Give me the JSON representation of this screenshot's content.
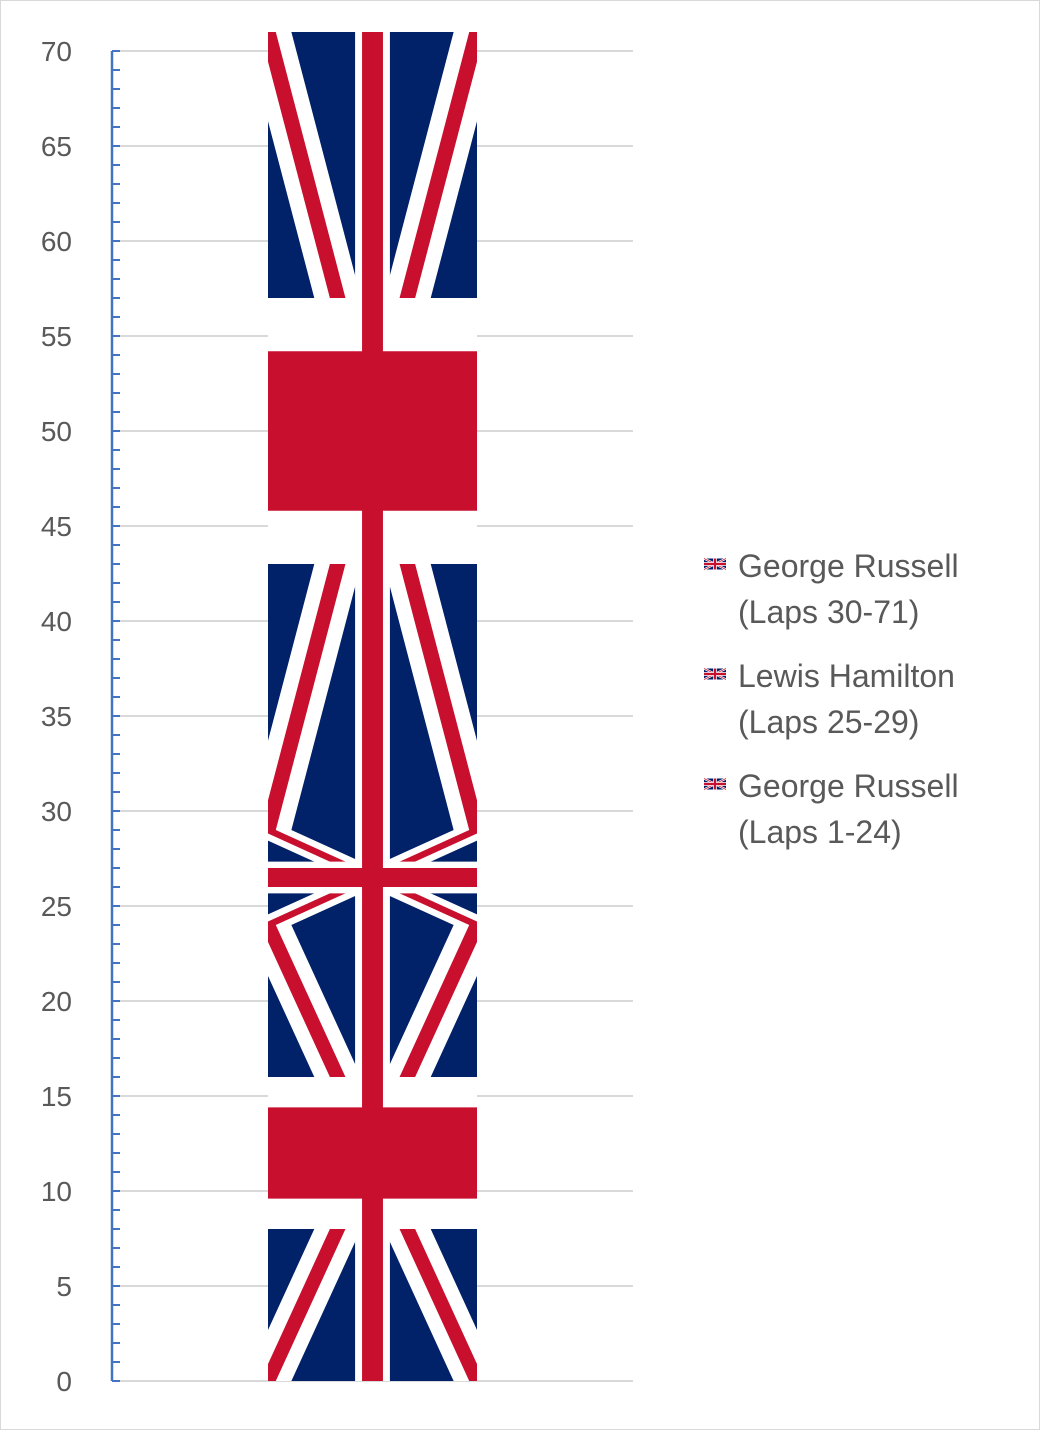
{
  "chart_data": {
    "type": "bar",
    "stacked": true,
    "categories": [
      ""
    ],
    "title": "",
    "xlabel": "",
    "ylabel": "",
    "ylim": [
      0,
      70
    ],
    "yticks": [
      0,
      5,
      10,
      15,
      20,
      25,
      30,
      35,
      40,
      45,
      50,
      55,
      60,
      65,
      70
    ],
    "ytick_labels": [
      "0",
      "5",
      "10",
      "15",
      "20",
      "25",
      "30",
      "35",
      "40",
      "45",
      "50",
      "55",
      "60",
      "65",
      "70"
    ],
    "grid": true,
    "legend_position": "right",
    "fill": "uk-flag-picture",
    "series": [
      {
        "name": "George Russell (Laps 1-24)",
        "values": [
          24
        ]
      },
      {
        "name": "Lewis Hamilton (Laps 25-29)",
        "values": [
          5
        ]
      },
      {
        "name": "George Russell (Laps 30-71)",
        "values": [
          42
        ]
      }
    ]
  },
  "legend": {
    "items": [
      {
        "line1": "George Russell",
        "line2": "(Laps 30-71)"
      },
      {
        "line1": "Lewis Hamilton",
        "line2": "(Laps 25-29)"
      },
      {
        "line1": "George Russell",
        "line2": "(Laps 1-24)"
      }
    ]
  },
  "colors": {
    "flag_blue": "#012169",
    "flag_red": "#C8102E",
    "flag_white": "#FFFFFF",
    "axis": "#4472C4",
    "grid": "#d9d9d9",
    "text": "#595959"
  }
}
